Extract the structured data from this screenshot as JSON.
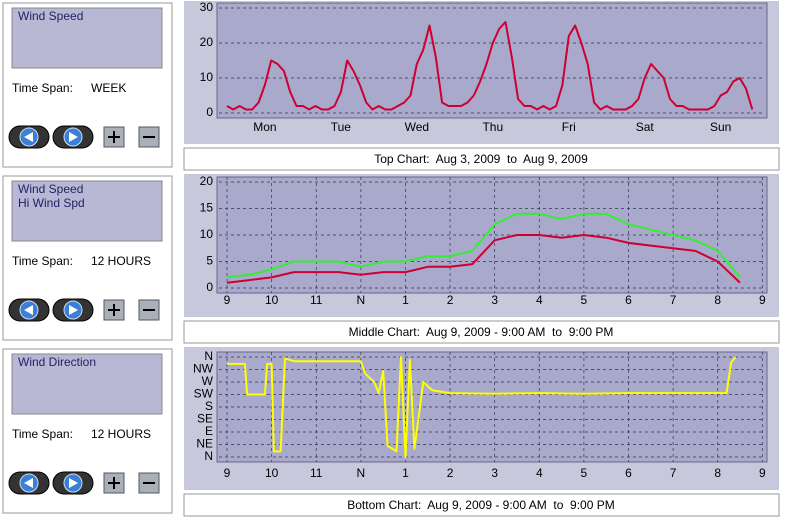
{
  "chart_data": [
    {
      "type": "line",
      "title": "Top Chart:  Aug 3, 2009  to  Aug 9, 2009",
      "time_span_label": "Time Span:",
      "time_span": "WEEK",
      "x": [
        0,
        2,
        4,
        6,
        8,
        10,
        12,
        14,
        16,
        18,
        20,
        22,
        24,
        26,
        28,
        30,
        32,
        34,
        36,
        38,
        40,
        42,
        44,
        46,
        48,
        50,
        52,
        54,
        56,
        58,
        60,
        62,
        64,
        66,
        68,
        70,
        72,
        74,
        76,
        78,
        80,
        82,
        84,
        86,
        88,
        90,
        92,
        94,
        96,
        98,
        100,
        102,
        104,
        106,
        108,
        110,
        112,
        114,
        116,
        118,
        120,
        122,
        124,
        126,
        128,
        130,
        132,
        134,
        136,
        138,
        140,
        142,
        144,
        146,
        148,
        150,
        152,
        154,
        156,
        158,
        160,
        162,
        164,
        166
      ],
      "xlim": [
        -2.5,
        170
      ],
      "xticks": [
        {
          "value": 12,
          "label": "Mon"
        },
        {
          "value": 36,
          "label": "Tue"
        },
        {
          "value": 60,
          "label": "Wed"
        },
        {
          "value": 84,
          "label": "Thu"
        },
        {
          "value": 108,
          "label": "Fri"
        },
        {
          "value": 132,
          "label": "Sat"
        },
        {
          "value": 156,
          "label": "Sun"
        }
      ],
      "ylim": [
        0,
        30
      ],
      "yticks": [
        0,
        10,
        20,
        30
      ],
      "grid": "y",
      "series": [
        {
          "name": "Wind Speed",
          "color": "#cc0033",
          "values": [
            2,
            1,
            2,
            1,
            1,
            3,
            8,
            15,
            14,
            12,
            6,
            2,
            2,
            1,
            2,
            1,
            1,
            2,
            6,
            15,
            12,
            8,
            3,
            1,
            2,
            1,
            1,
            2,
            3,
            5,
            14,
            18,
            25,
            16,
            3,
            2,
            2,
            2,
            3,
            5,
            9,
            14,
            20,
            24,
            26,
            16,
            4,
            2,
            2,
            1,
            2,
            1,
            2,
            8,
            22,
            25,
            20,
            14,
            3,
            1,
            2,
            1,
            1,
            1,
            2,
            4,
            10,
            14,
            12,
            10,
            4,
            2,
            2,
            1,
            1,
            1,
            1,
            2,
            5,
            6,
            9,
            10,
            7,
            1
          ]
        }
      ]
    },
    {
      "type": "line",
      "title": "Middle Chart:  Aug 9, 2009 - 9:00 AM  to  9:00 PM",
      "time_span_label": "Time Span:",
      "time_span": "12 HOURS",
      "x": [
        9,
        9.5,
        10,
        10.5,
        11,
        11.5,
        12,
        12.5,
        13,
        13.5,
        14,
        14.5,
        15,
        15.5,
        16,
        16.5,
        17,
        17.5,
        18,
        18.5,
        19,
        19.5,
        20,
        20.5
      ],
      "xlim": [
        8.82,
        21.06
      ],
      "xticks": [
        9,
        10,
        11,
        {
          "value": 12,
          "label": "N"
        },
        {
          "value": 13,
          "label": "1"
        },
        {
          "value": 14,
          "label": "2"
        },
        {
          "value": 15,
          "label": "3"
        },
        {
          "value": 16,
          "label": "4"
        },
        {
          "value": 17,
          "label": "5"
        },
        {
          "value": 18,
          "label": "6"
        },
        {
          "value": 19,
          "label": "7"
        },
        {
          "value": 20,
          "label": "8"
        },
        {
          "value": 21,
          "label": "9"
        }
      ],
      "ylim": [
        0,
        20
      ],
      "yticks": [
        0,
        5,
        10,
        15,
        20
      ],
      "grid": "both",
      "series": [
        {
          "name": "Wind Speed",
          "color": "#cc0033",
          "values": [
            1,
            1.5,
            2,
            3,
            3,
            3,
            2.5,
            3,
            3,
            4,
            4,
            4.5,
            9,
            10,
            10,
            9.5,
            10,
            9.5,
            8.5,
            8,
            7.5,
            7,
            5,
            1
          ]
        },
        {
          "name": "Hi Wind Spd",
          "color": "#33ee33",
          "values": [
            2,
            2.5,
            3.5,
            5,
            5,
            5,
            4,
            5,
            5,
            6,
            6,
            7,
            12,
            14,
            14,
            13,
            14,
            14,
            12,
            11,
            10,
            9,
            7,
            2
          ]
        }
      ]
    },
    {
      "type": "line",
      "title": "Bottom Chart:  Aug 9, 2009 - 9:00 AM  to  9:00 PM",
      "time_span_label": "Time Span:",
      "time_span": "12 HOURS",
      "x": [
        9,
        9.4,
        9.45,
        9.85,
        9.9,
        10.0,
        10.05,
        10.2,
        10.3,
        10.5,
        12,
        12.1,
        12.3,
        12.4,
        12.5,
        12.6,
        12.8,
        12.9,
        13.0,
        13.1,
        13.2,
        13.4,
        13.6,
        14,
        15,
        16,
        17,
        18,
        19,
        20,
        20.2,
        20.3,
        20.4
      ],
      "xlim": [
        8.82,
        21.06
      ],
      "xticks": [
        9,
        10,
        11,
        {
          "value": 12,
          "label": "N"
        },
        {
          "value": 13,
          "label": "1"
        },
        {
          "value": 14,
          "label": "2"
        },
        {
          "value": 15,
          "label": "3"
        },
        {
          "value": 16,
          "label": "4"
        },
        {
          "value": 17,
          "label": "5"
        },
        {
          "value": 18,
          "label": "6"
        },
        {
          "value": 19,
          "label": "7"
        },
        {
          "value": 20,
          "label": "8"
        },
        {
          "value": 21,
          "label": "9"
        }
      ],
      "ylim": [
        0,
        360
      ],
      "yticks": [
        {
          "value": 0,
          "label": "N"
        },
        {
          "value": 45,
          "label": "NE"
        },
        {
          "value": 90,
          "label": "E"
        },
        {
          "value": 135,
          "label": "SE"
        },
        {
          "value": 180,
          "label": "S"
        },
        {
          "value": 225,
          "label": "SW"
        },
        {
          "value": 270,
          "label": "W"
        },
        {
          "value": 315,
          "label": "NW"
        },
        {
          "value": 360,
          "label": "N"
        }
      ],
      "grid": "both",
      "series": [
        {
          "name": "Wind Direction",
          "color": "#ffff00",
          "values": [
            335,
            335,
            225,
            225,
            335,
            335,
            20,
            20,
            355,
            345,
            345,
            300,
            270,
            230,
            310,
            40,
            20,
            360,
            0,
            350,
            30,
            270,
            240,
            230,
            228,
            230,
            228,
            230,
            230,
            230,
            230,
            340,
            360
          ]
        }
      ]
    }
  ]
}
